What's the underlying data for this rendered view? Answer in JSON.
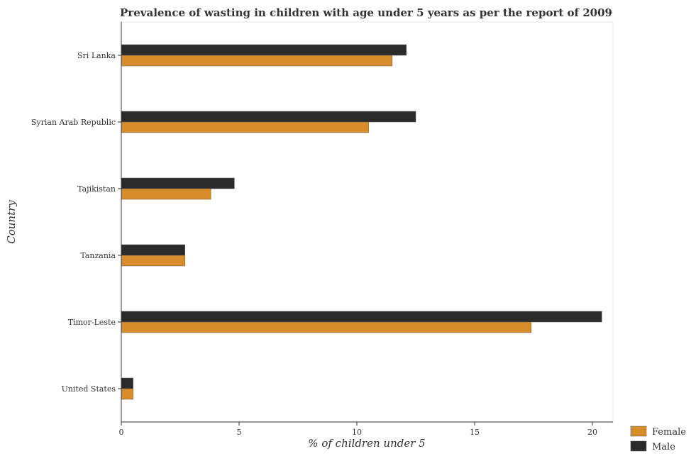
{
  "chart_data": {
    "type": "bar",
    "orientation": "horizontal",
    "title": "Prevalence of wasting in children with age under 5 years as per the report of 2009",
    "xlabel": "% of children under 5",
    "ylabel": "Country",
    "categories": [
      "Sri Lanka",
      "Syrian Arab Republic",
      "Tajikistan",
      "Tanzania",
      "Timor-Leste",
      "United States"
    ],
    "series": [
      {
        "name": "Female",
        "color": "#d98c2b",
        "values": [
          11.5,
          10.5,
          3.8,
          2.7,
          17.4,
          0.5
        ]
      },
      {
        "name": "Male",
        "color": "#2b2b2b",
        "values": [
          12.1,
          12.5,
          4.8,
          2.7,
          20.4,
          0.5
        ]
      }
    ],
    "xlim": [
      0,
      21
    ],
    "xticks": [
      0,
      5,
      10,
      15,
      20
    ],
    "grid": false,
    "legend_position": "bottom-right"
  }
}
